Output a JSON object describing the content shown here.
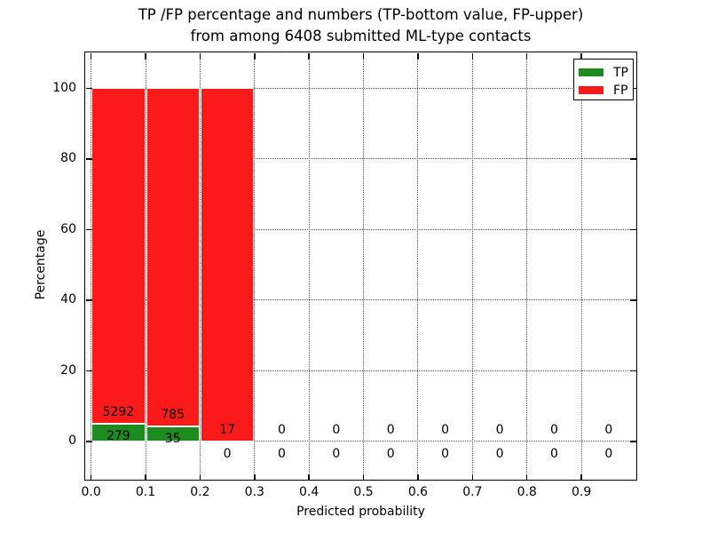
{
  "title": {
    "line1": "TP /FP percentage and numbers (TP-bottom value, FP-upper)",
    "line2": "from among 6408 submitted ML-type contacts"
  },
  "colors": {
    "tp": "#1d8b1d",
    "fp": "#fb1a1a",
    "grid": "#555555",
    "axis": "#000000",
    "background": "#ffffff"
  },
  "legend": {
    "items": [
      {
        "label": "TP",
        "color_key": "tp"
      },
      {
        "label": "FP",
        "color_key": "fp"
      }
    ],
    "position": "upper right"
  },
  "chart_data": {
    "type": "bar",
    "stacked": true,
    "title": "TP /FP percentage and numbers (TP-bottom value, FP-upper) from among 6408 submitted ML-type contacts",
    "xlabel": "Predicted probability",
    "ylabel": "Percentage",
    "total_submitted_contacts": 6408,
    "xlim": [
      -0.01,
      1.0
    ],
    "ylim": [
      -11,
      110
    ],
    "x_ticks": [
      "0.0",
      "0.1",
      "0.2",
      "0.3",
      "0.4",
      "0.5",
      "0.6",
      "0.7",
      "0.8",
      "0.9"
    ],
    "y_ticks": [
      0,
      20,
      40,
      60,
      80,
      100
    ],
    "grid": "dotted, both axes",
    "legend_position": "upper right",
    "bins": [
      {
        "x0": 0.0,
        "x1": 0.1,
        "tp_count": 279,
        "fp_count": 5292,
        "tp_pct": 5.01,
        "fp_pct": 94.99
      },
      {
        "x0": 0.1,
        "x1": 0.2,
        "tp_count": 35,
        "fp_count": 785,
        "tp_pct": 4.27,
        "fp_pct": 95.73
      },
      {
        "x0": 0.2,
        "x1": 0.3,
        "tp_count": 0,
        "fp_count": 17,
        "tp_pct": 0,
        "fp_pct": 100
      },
      {
        "x0": 0.3,
        "x1": 0.4,
        "tp_count": 0,
        "fp_count": 0,
        "tp_pct": 0,
        "fp_pct": 0
      },
      {
        "x0": 0.4,
        "x1": 0.5,
        "tp_count": 0,
        "fp_count": 0,
        "tp_pct": 0,
        "fp_pct": 0
      },
      {
        "x0": 0.5,
        "x1": 0.6,
        "tp_count": 0,
        "fp_count": 0,
        "tp_pct": 0,
        "fp_pct": 0
      },
      {
        "x0": 0.6,
        "x1": 0.7,
        "tp_count": 0,
        "fp_count": 0,
        "tp_pct": 0,
        "fp_pct": 0
      },
      {
        "x0": 0.7,
        "x1": 0.8,
        "tp_count": 0,
        "fp_count": 0,
        "tp_pct": 0,
        "fp_pct": 0
      },
      {
        "x0": 0.8,
        "x1": 0.9,
        "tp_count": 0,
        "fp_count": 0,
        "tp_pct": 0,
        "fp_pct": 0
      },
      {
        "x0": 0.9,
        "x1": 1.0,
        "tp_count": 0,
        "fp_count": 0,
        "tp_pct": 0,
        "fp_pct": 0
      }
    ]
  }
}
